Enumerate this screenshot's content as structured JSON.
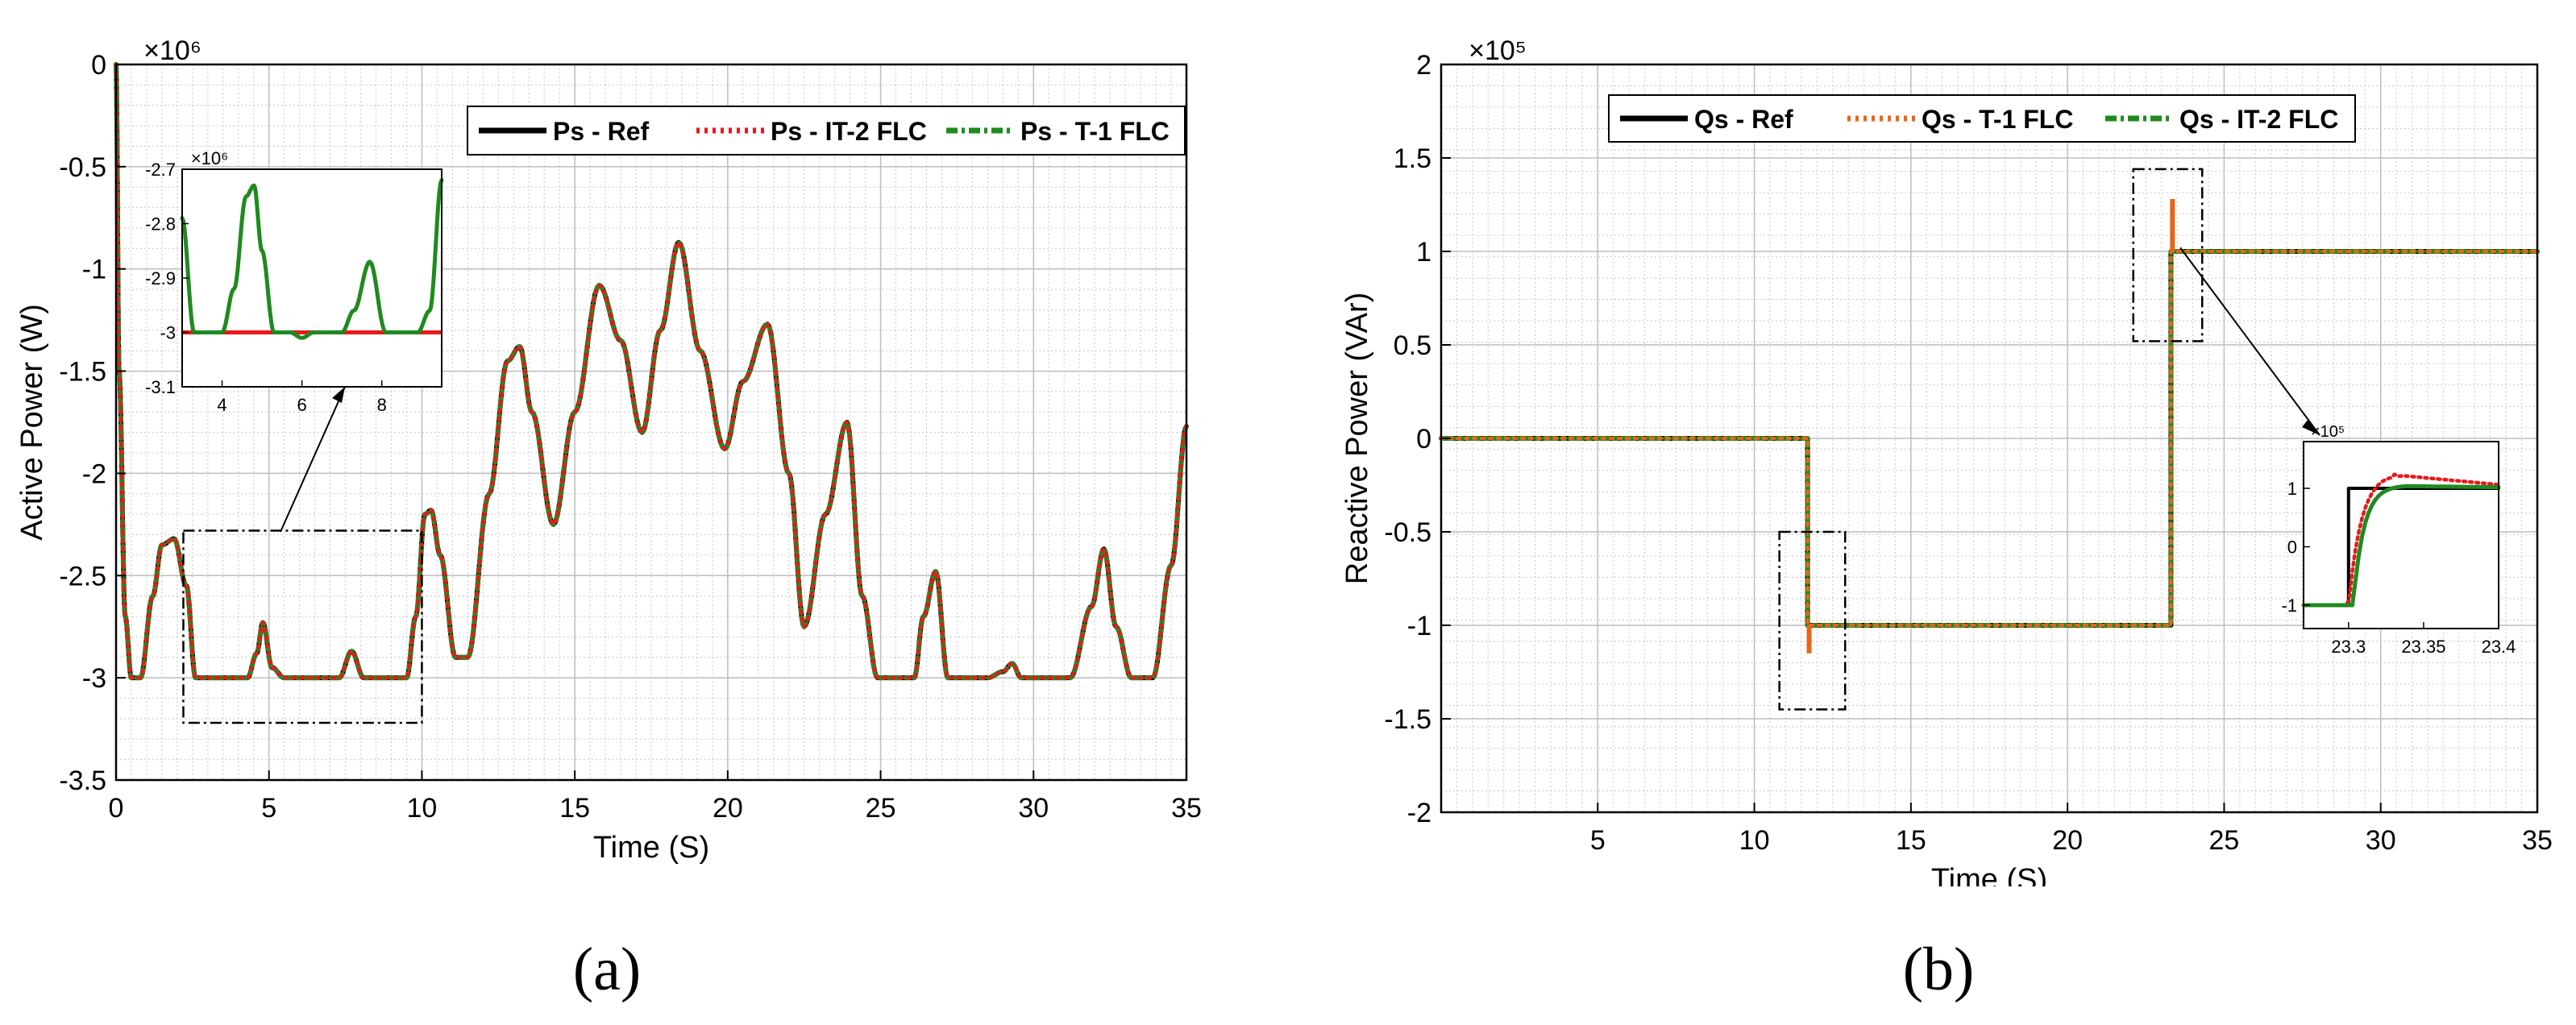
{
  "chart_data": [
    {
      "type": "line",
      "panel_label": "(a)",
      "xlabel": "Time (S)",
      "ylabel": "Active Power (W)",
      "exponent_label": "×10⁶",
      "xlim": [
        0,
        35
      ],
      "ylim": [
        -3.5,
        0
      ],
      "xticks": [
        0,
        5,
        10,
        15,
        20,
        25,
        30,
        35
      ],
      "yticks": [
        0,
        -0.5,
        -1,
        -1.5,
        -2,
        -2.5,
        -3,
        -3.5
      ],
      "ytick_labels": [
        "0",
        "-0.5",
        "-1",
        "-1.5",
        "-2",
        "-2.5",
        "-3",
        "-3.5"
      ],
      "grid": true,
      "legend_position": "top-right",
      "series": [
        {
          "name": "Ps - Ref",
          "color": "#000000",
          "style": "solid"
        },
        {
          "name": "Ps -  IT-2 FLC",
          "color": "#e8191a",
          "style": "dotted"
        },
        {
          "name": "Ps - T-1 FLC",
          "color": "#1f8a1f",
          "style": "dashdot"
        }
      ],
      "x": [
        0,
        0.1,
        0.3,
        0.5,
        0.8,
        1.2,
        1.5,
        1.9,
        2.3,
        2.6,
        2.9,
        3.5,
        4.3,
        4.6,
        4.8,
        5.1,
        5.5,
        6.5,
        7.3,
        7.7,
        8.1,
        8.8,
        9.5,
        9.8,
        10.1,
        10.3,
        10.6,
        11.1,
        11.5,
        12.2,
        12.8,
        13.2,
        13.6,
        14.3,
        15.0,
        15.8,
        16.5,
        17.2,
        17.8,
        18.4,
        19.1,
        19.9,
        20.5,
        21.3,
        22.0,
        22.5,
        23.2,
        23.9,
        24.4,
        24.9,
        26.1,
        26.4,
        26.8,
        27.2,
        28.5,
        29.0,
        29.3,
        29.6,
        31.2,
        31.9,
        32.3,
        32.7,
        33.2,
        33.9,
        34.5,
        35.0
      ],
      "y": [
        0,
        -1.5,
        -2.7,
        -3.0,
        -3.0,
        -2.6,
        -2.35,
        -2.32,
        -2.55,
        -3.0,
        -3.0,
        -3.0,
        -3.0,
        -2.88,
        -2.73,
        -2.95,
        -3.0,
        -3.0,
        -3.0,
        -2.87,
        -3.0,
        -3.0,
        -3.0,
        -2.7,
        -2.2,
        -2.18,
        -2.4,
        -2.9,
        -2.9,
        -2.1,
        -1.45,
        -1.38,
        -1.7,
        -2.25,
        -1.7,
        -1.08,
        -1.35,
        -1.8,
        -1.3,
        -0.87,
        -1.4,
        -1.88,
        -1.55,
        -1.27,
        -2.0,
        -2.75,
        -2.2,
        -1.75,
        -2.6,
        -3.0,
        -3.0,
        -2.7,
        -2.48,
        -3.0,
        -3.0,
        -2.97,
        -2.93,
        -3.0,
        -3.0,
        -2.65,
        -2.37,
        -2.75,
        -3.0,
        -3.0,
        -2.45,
        -1.77
      ],
      "inset": {
        "exponent_label": "×10⁶",
        "xlim": [
          3,
          9.5
        ],
        "ylim": [
          -3.1,
          -2.7
        ],
        "xticks": [
          4,
          6,
          8
        ],
        "yticks": [
          -2.7,
          -2.8,
          -2.9,
          -3,
          -3.1
        ],
        "ytick_labels": [
          "-2.7",
          "-2.8",
          "-2.9",
          "-3",
          "-3.1"
        ],
        "x": [
          3.0,
          3.3,
          3.6,
          4.0,
          4.3,
          4.6,
          4.8,
          5.0,
          5.3,
          5.7,
          6.0,
          6.3,
          6.6,
          7.0,
          7.3,
          7.7,
          8.1,
          8.5,
          8.9,
          9.2,
          9.5
        ],
        "y": [
          -2.79,
          -3.0,
          -3.0,
          -3.0,
          -2.92,
          -2.75,
          -2.73,
          -2.85,
          -3.0,
          -3.0,
          -3.01,
          -3.0,
          -3.0,
          -3.0,
          -2.96,
          -2.87,
          -3.0,
          -3.0,
          -3.0,
          -2.96,
          -2.72
        ]
      }
    },
    {
      "type": "line",
      "panel_label": "(b)",
      "xlabel": "Time (S)",
      "ylabel": "Reactive Power (VAr)",
      "exponent_label": "×10⁵",
      "xlim": [
        0,
        35
      ],
      "ylim": [
        -2,
        2
      ],
      "xticks": [
        5,
        10,
        15,
        20,
        25,
        30,
        35
      ],
      "yticks": [
        2,
        1.5,
        1,
        0.5,
        0,
        -0.5,
        -1,
        -1.5,
        -2
      ],
      "ytick_labels": [
        "2",
        "1.5",
        "1",
        "0.5",
        "0",
        "-0.5",
        "-1",
        "-1.5",
        "-2"
      ],
      "grid": true,
      "legend_position": "top",
      "series": [
        {
          "name": "Qs - Ref",
          "color": "#000000",
          "style": "solid"
        },
        {
          "name": "Qs - T-1 FLC",
          "color": "#e8641a",
          "style": "dotted"
        },
        {
          "name": "Qs - IT-2 FLC",
          "color": "#1f8a1f",
          "style": "dashdot"
        }
      ],
      "x": [
        0,
        11.7,
        11.7,
        23.3,
        23.3,
        35
      ],
      "y": [
        0,
        0,
        -1,
        -1,
        1,
        1
      ],
      "spikes": [
        {
          "x": 11.75,
          "y": -1.15
        },
        {
          "x": 23.35,
          "y": 1.28
        }
      ],
      "inset": {
        "exponent_label": "×10⁵",
        "xlim": [
          23.27,
          23.4
        ],
        "ylim": [
          -1.4,
          1.8
        ],
        "xticks": [
          23.3,
          23.35,
          23.4
        ],
        "yticks": [
          1,
          0,
          -1
        ],
        "ytick_labels": [
          "1",
          "0",
          "-1"
        ]
      }
    }
  ]
}
